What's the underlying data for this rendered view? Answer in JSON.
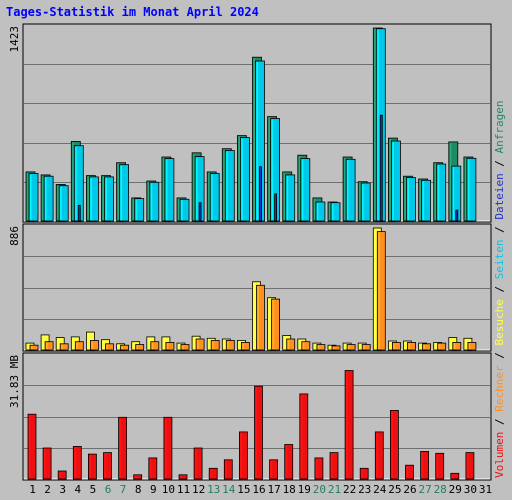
{
  "chart_data": {
    "type": "bar",
    "title": "Tages-Statistik im Monat April 2024",
    "days": [
      "1",
      "2",
      "3",
      "4",
      "5",
      "6",
      "7",
      "8",
      "9",
      "10",
      "11",
      "12",
      "13",
      "14",
      "15",
      "16",
      "17",
      "18",
      "19",
      "20",
      "21",
      "22",
      "23",
      "24",
      "25",
      "26",
      "27",
      "28",
      "29",
      "30",
      "31"
    ],
    "weekend_days": [
      "6",
      "7",
      "13",
      "14",
      "20",
      "21",
      "27",
      "28"
    ],
    "panels": [
      {
        "id": "hits",
        "ymax_label": "1423",
        "ymax": 1423,
        "series": [
          {
            "name": "Anfragen",
            "color": "#1f8b64",
            "values": [
              362,
              340,
              270,
              587,
              335,
              335,
              430,
              170,
              295,
              472,
              170,
              503,
              362,
              533,
              630,
              1208,
              770,
              362,
              485,
              170,
              140,
              472,
              290,
              1423,
              611,
              330,
              310,
              430,
              583,
              472
            ]
          },
          {
            "name": "Dateien",
            "color": "#00c8e8",
            "values": [
              350,
              330,
              260,
              555,
              325,
              325,
              415,
              165,
              285,
              460,
              160,
              475,
              350,
              520,
              615,
              1180,
              755,
              340,
              460,
              140,
              135,
              455,
              280,
              1418,
              590,
              320,
              300,
              420,
              405,
              462
            ]
          },
          {
            "name": "Seiten",
            "color": "#2030c8",
            "values": [
              0,
              0,
              0,
              115,
              0,
              0,
              0,
              0,
              0,
              0,
              0,
              135,
              0,
              0,
              0,
              400,
              200,
              0,
              0,
              0,
              0,
              0,
              0,
              780,
              0,
              0,
              0,
              0,
              80,
              0
            ]
          }
        ]
      },
      {
        "id": "visits",
        "ymax_label": "886",
        "ymax": 886,
        "series": [
          {
            "name": "Besuche",
            "color": "#ffff40",
            "values": [
              50,
              110,
              90,
              95,
              130,
              75,
              45,
              60,
              95,
              95,
              50,
              100,
              85,
              80,
              70,
              495,
              380,
              105,
              80,
              50,
              35,
              50,
              50,
              886,
              65,
              65,
              50,
              55,
              90,
              85
            ]
          },
          {
            "name": "Rechner",
            "color": "#ff9020",
            "values": [
              35,
              60,
              45,
              60,
              70,
              45,
              35,
              40,
              60,
              55,
              40,
              80,
              70,
              70,
              55,
              470,
              370,
              80,
              60,
              40,
              30,
              40,
              40,
              860,
              55,
              55,
              45,
              50,
              55,
              55
            ]
          }
        ]
      },
      {
        "id": "volume",
        "ymax_label": "31.83 MB",
        "ymax": 31.83,
        "series": [
          {
            "name": "Volumen",
            "color": "#ee1010",
            "values": [
              16.9,
              8.1,
              2.1,
              8.5,
              6.5,
              6.9,
              16.1,
              1.1,
              5.5,
              16.1,
              1.1,
              8.1,
              2.8,
              5.0,
              12.3,
              24.2,
              5.0,
              9.0,
              22.2,
              5.5,
              6.9,
              28.3,
              2.8,
              12.3,
              17.9,
              3.6,
              7.2,
              6.7,
              1.5,
              6.9
            ]
          }
        ]
      }
    ],
    "legend_right": [
      "Volumen",
      "Rechner",
      "Besuche",
      "Seiten",
      "Dateien",
      "Anfragen"
    ],
    "legend_separator": " / ",
    "grid": true
  }
}
